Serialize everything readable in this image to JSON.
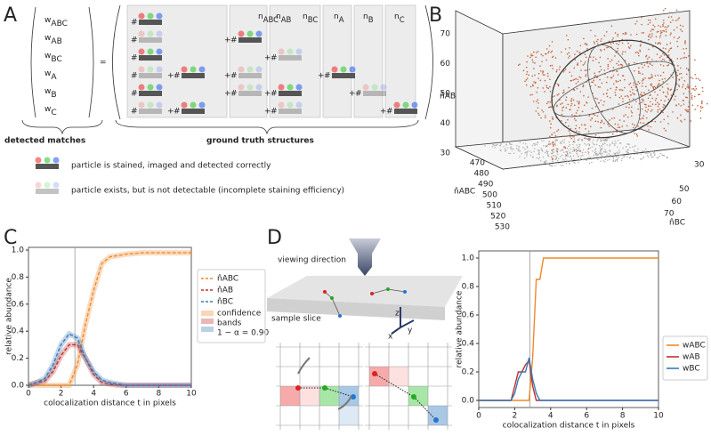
{
  "panel_labels": [
    "A",
    "B",
    "C",
    "D"
  ],
  "panel_a": {
    "lhs": [
      {
        "base": "w",
        "sub": "ABC"
      },
      {
        "base": "w",
        "sub": "AB"
      },
      {
        "base": "w",
        "sub": "BC"
      },
      {
        "base": "w",
        "sub": "A"
      },
      {
        "base": "w",
        "sub": "B"
      },
      {
        "base": "w",
        "sub": "C"
      }
    ],
    "columns": [
      {
        "base": "n",
        "sub": "ABC"
      },
      {
        "base": "n",
        "sub": "AB"
      },
      {
        "base": "n",
        "sub": "BC"
      },
      {
        "base": "n",
        "sub": "A"
      },
      {
        "base": "n",
        "sub": "B"
      },
      {
        "base": "n",
        "sub": "C"
      }
    ],
    "equals": "=",
    "hash": "#",
    "plus": "+",
    "brace_labels": [
      "detected matches",
      "ground truth structures"
    ],
    "legend": [
      "particle is stained, imaged and detected correctly",
      "particle exists, but is not detectable (incomplete staining efficiency)"
    ]
  },
  "panel_b": {
    "zlabel": "n̂AB",
    "xlabel": "n̂ABC",
    "ylabel": "n̂BC",
    "zticks": [
      30,
      40,
      50,
      60,
      70
    ],
    "xticks": [
      470,
      480,
      490,
      500,
      510,
      520,
      530
    ],
    "yticks": [
      30,
      50,
      60,
      70
    ],
    "highlight": [
      50,
      500,
      50
    ],
    "highlight_color": "#d62020",
    "point_color": "#c4643c"
  },
  "panel_d": {
    "viewing": "viewing direction",
    "slice": "sample slice",
    "axes": [
      "z",
      "x",
      "y"
    ]
  },
  "chart_data": [
    {
      "type": "line",
      "ylabel": "relative abundance",
      "xlabel": "colocalization distance t in pixels",
      "x": [
        0,
        0.5,
        1,
        1.5,
        2,
        2.5,
        3,
        3.5,
        4,
        4.5,
        5,
        5.5,
        6,
        6.5,
        7,
        7.5,
        8,
        8.5,
        9,
        9.5,
        10
      ],
      "series": [
        {
          "name": "n̂ABC",
          "color": "#f0892a",
          "dash": true,
          "values": [
            0,
            0,
            0,
            0,
            0,
            0,
            0.15,
            0.45,
            0.7,
            0.9,
            0.95,
            0.96,
            0.97,
            0.975,
            0.98,
            0.98,
            0.98,
            0.98,
            0.98,
            0.98,
            0.98
          ]
        },
        {
          "name": "n̂AB",
          "color": "#c0302a",
          "dash": true,
          "values": [
            0,
            0.02,
            0.03,
            0.1,
            0.22,
            0.3,
            0.3,
            0.2,
            0.08,
            0.02,
            0.01,
            0,
            0,
            0,
            0,
            0,
            0,
            0,
            0,
            0,
            0
          ]
        },
        {
          "name": "n̂BC",
          "color": "#3a7ab8",
          "dash": true,
          "values": [
            0,
            0.02,
            0.05,
            0.15,
            0.3,
            0.38,
            0.35,
            0.2,
            0.1,
            0.04,
            0.02,
            0.01,
            0,
            0,
            0,
            0,
            0,
            0,
            0,
            0,
            0
          ]
        }
      ],
      "legend_extra": [
        "confidence",
        "bands",
        "1 − α = 0.90"
      ],
      "xlim": [
        0,
        10
      ],
      "ylim": [
        0,
        1.02
      ],
      "xticks": [
        0,
        2,
        4,
        6,
        8,
        10
      ],
      "yticks": [
        {
          "value": 0,
          "label": "0.0"
        },
        {
          "value": 0.2,
          "label": "0.2"
        },
        {
          "value": 0.4,
          "label": "0.4"
        },
        {
          "value": 0.6,
          "label": "0.6"
        },
        {
          "value": 0.8,
          "label": "0.8"
        },
        {
          "value": 1,
          "label": "1.0"
        }
      ],
      "vline": 2.85,
      "grid": false
    },
    {
      "type": "line",
      "ylabel": "relative abundance",
      "xlabel": "colocalization distance t in pixels",
      "x": [
        0,
        1.8,
        2,
        2.2,
        2.4,
        2.6,
        2.8,
        3,
        3.2,
        3.4,
        3.6,
        3.8,
        10
      ],
      "series": [
        {
          "name": "wABC",
          "color": "#f0892a",
          "values": [
            0,
            0,
            0,
            0,
            0,
            0,
            0,
            0.3,
            0.85,
            0.85,
            1,
            1,
            1
          ]
        },
        {
          "name": "wAB",
          "color": "#c0302a",
          "values": [
            0,
            0,
            0.1,
            0.2,
            0.2,
            0.25,
            0.28,
            0.1,
            0,
            0,
            0,
            0,
            0
          ]
        },
        {
          "name": "wBC",
          "color": "#3a7ab8",
          "values": [
            0,
            0,
            0.05,
            0.15,
            0.2,
            0.2,
            0.3,
            0.15,
            0.05,
            0,
            0,
            0,
            0
          ]
        }
      ],
      "xlim": [
        0,
        10
      ],
      "ylim": [
        -0.05,
        1.05
      ],
      "xticks": [
        0,
        2,
        4,
        6,
        8,
        10
      ],
      "yticks": [
        {
          "value": 0,
          "label": "0.0"
        },
        {
          "value": 0.2,
          "label": "0.2"
        },
        {
          "value": 0.4,
          "label": "0.4"
        },
        {
          "value": 0.6,
          "label": "0.6"
        },
        {
          "value": 0.8,
          "label": "0.8"
        },
        {
          "value": 1,
          "label": "1.0"
        }
      ],
      "vline": 2.85,
      "grid": false
    }
  ]
}
